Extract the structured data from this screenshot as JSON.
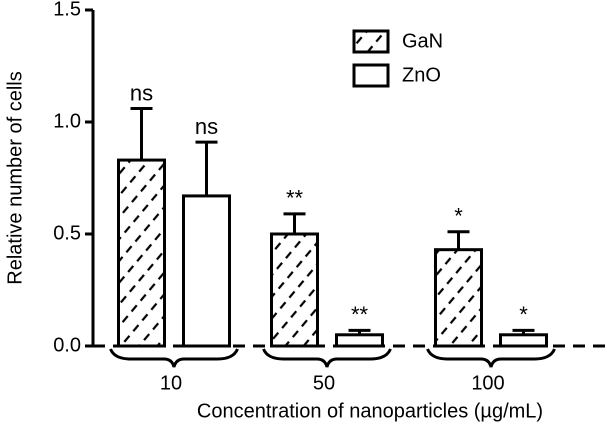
{
  "chart_data": {
    "type": "bar",
    "xlabel": "Concentration of nanoparticles (µg/mL)",
    "ylabel": "Relative number of cells",
    "categories": [
      "10",
      "50",
      "100"
    ],
    "series": [
      {
        "name": "GaN",
        "color": "#000000",
        "hatch": true,
        "values": [
          0.83,
          0.5,
          0.43
        ],
        "errors": [
          0.23,
          0.09,
          0.08
        ],
        "significance": [
          "ns",
          "**",
          "*"
        ]
      },
      {
        "name": "ZnO",
        "color": "#000000",
        "hatch": false,
        "values": [
          0.67,
          0.05,
          0.05
        ],
        "errors": [
          0.24,
          0.02,
          0.02
        ],
        "significance": [
          "ns",
          "**",
          "*"
        ]
      }
    ],
    "ylim": [
      0,
      1.5
    ],
    "yticks": [
      {
        "value": 0,
        "label": "0.0"
      },
      {
        "value": 0.5,
        "label": "0.5"
      },
      {
        "value": 1.0,
        "label": "1.0"
      },
      {
        "value": 1.5,
        "label": "1.5"
      }
    ],
    "legend": "top-right"
  }
}
